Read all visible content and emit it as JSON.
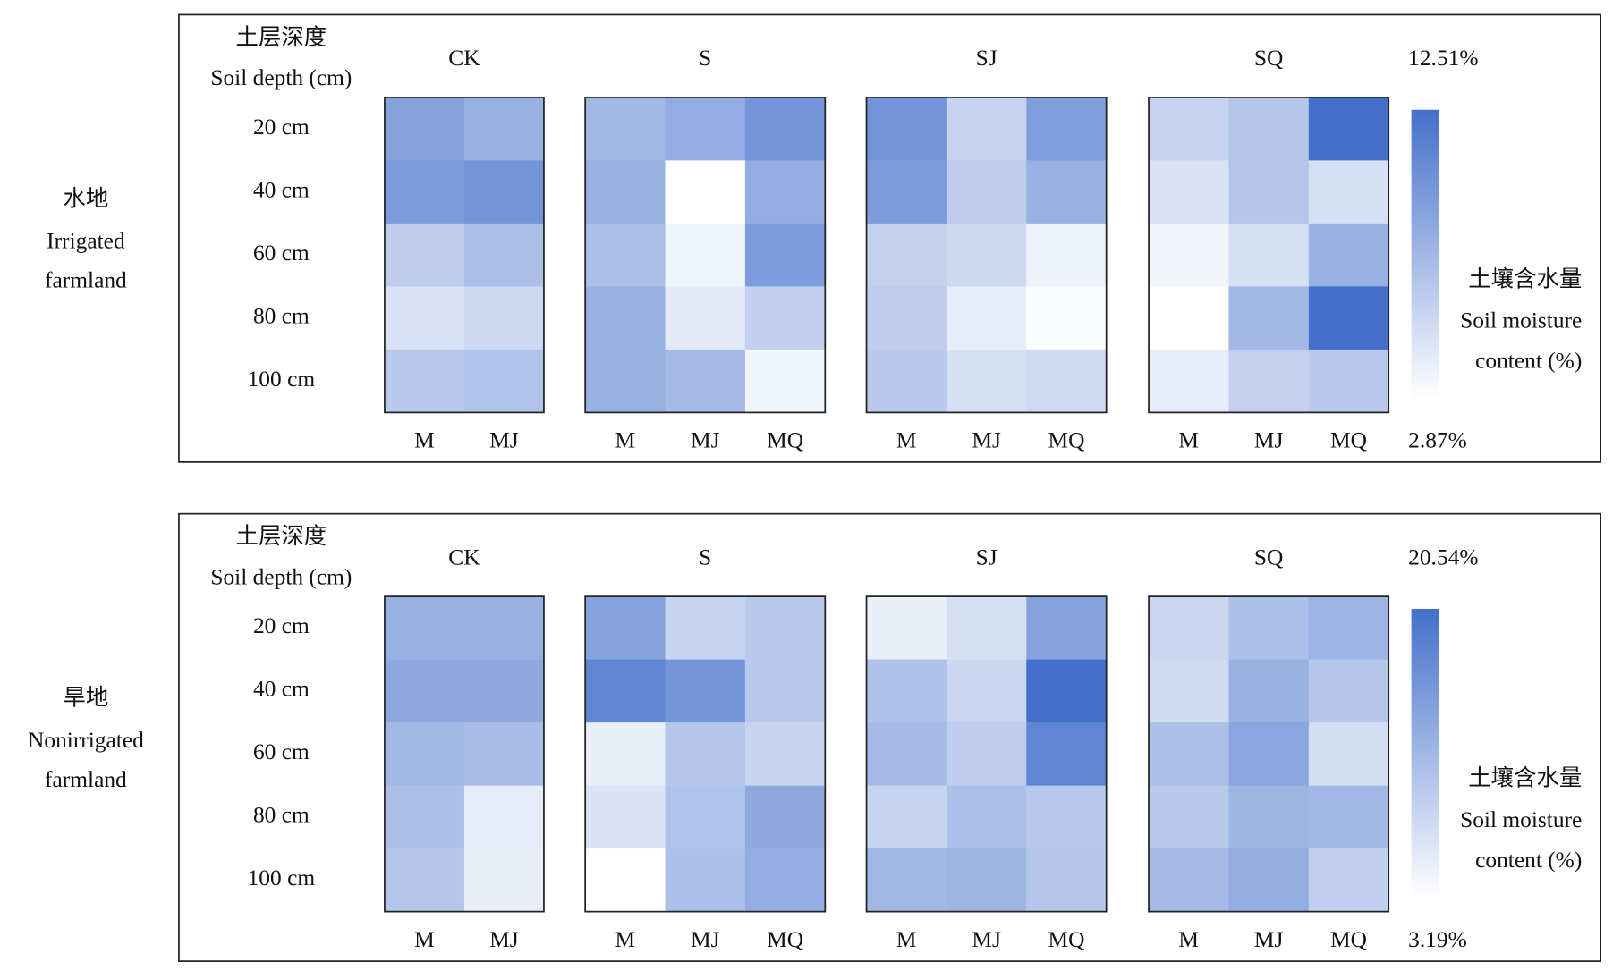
{
  "chart_data": [
    {
      "type": "heatmap",
      "panel_label": [
        "水地",
        "Irrigated",
        "farmland"
      ],
      "row_header": [
        "土层深度",
        "Soil depth (cm)"
      ],
      "rows": [
        "20 cm",
        "40 cm",
        "60 cm",
        "80 cm",
        "100 cm"
      ],
      "groups": [
        {
          "name": "CK",
          "columns": [
            "M",
            "MJ"
          ],
          "values": [
            [
              9.14,
              8.17
            ],
            [
              9.62,
              10.1
            ],
            [
              6.24,
              7.21
            ],
            [
              4.8,
              5.47
            ],
            [
              6.53,
              6.92
            ]
          ]
        },
        {
          "name": "S",
          "columns": [
            "M",
            "MJ",
            "MQ"
          ],
          "values": [
            [
              7.69,
              8.46,
              10.1
            ],
            [
              8.17,
              2.87,
              8.46
            ],
            [
              7.21,
              3.64,
              9.62
            ],
            [
              8.17,
              4.32,
              6.05
            ],
            [
              8.17,
              7.5,
              3.64
            ]
          ]
        },
        {
          "name": "SJ",
          "columns": [
            "M",
            "MJ",
            "MQ"
          ],
          "values": [
            [
              10.1,
              5.76,
              9.43
            ],
            [
              9.62,
              6.24,
              8.17
            ],
            [
              5.95,
              5.47,
              3.83
            ],
            [
              6.24,
              4.03,
              3.06
            ],
            [
              6.53,
              4.99,
              5.28
            ]
          ]
        },
        {
          "name": "SQ",
          "columns": [
            "M",
            "MJ",
            "MQ"
          ],
          "values": [
            [
              5.76,
              6.73,
              12.51
            ],
            [
              4.8,
              6.73,
              4.99
            ],
            [
              3.54,
              4.99,
              8.17
            ],
            [
              2.87,
              7.69,
              12.51
            ],
            [
              4.12,
              5.95,
              6.53
            ]
          ]
        }
      ],
      "clim": [
        {
          "value": 2.87,
          "label": "2.87%"
        },
        {
          "value": 12.51,
          "label": "12.51%"
        }
      ],
      "colorbar_title": [
        "土壤含水量",
        "Soil moisture",
        "content (%)"
      ],
      "colors": [
        "#ffffff",
        "#4470cb"
      ]
    },
    {
      "type": "heatmap",
      "panel_label": [
        "旱地",
        "Nonirrigated",
        "farmland"
      ],
      "row_header": [
        "土层深度",
        "Soil depth (cm)"
      ],
      "rows": [
        "20 cm",
        "40 cm",
        "60 cm",
        "80 cm",
        "100 cm"
      ],
      "groups": [
        {
          "name": "CK",
          "columns": [
            "M",
            "MJ"
          ],
          "values": [
            [
              12.73,
              12.73
            ],
            [
              13.6,
              13.6
            ],
            [
              11.87,
              11.35
            ],
            [
              11.0,
              5.45
            ],
            [
              10.13,
              5.27
            ]
          ]
        },
        {
          "name": "S",
          "columns": [
            "M",
            "MJ",
            "MQ"
          ],
          "values": [
            [
              14.47,
              8.4,
              9.78
            ],
            [
              17.94,
              16.2,
              9.78
            ],
            [
              5.27,
              10.13,
              8.4
            ],
            [
              6.66,
              10.48,
              13.6
            ],
            [
              3.19,
              11.0,
              13.25
            ]
          ]
        },
        {
          "name": "SJ",
          "columns": [
            "M",
            "MJ",
            "MQ"
          ],
          "values": [
            [
              5.27,
              7.01,
              14.47
            ],
            [
              10.65,
              8.05,
              20.54
            ],
            [
              11.52,
              9.26,
              17.94
            ],
            [
              8.4,
              11.0,
              9.78
            ],
            [
              11.87,
              12.21,
              10.13
            ]
          ]
        },
        {
          "name": "SQ",
          "columns": [
            "M",
            "MJ",
            "MQ"
          ],
          "values": [
            [
              8.05,
              11.0,
              12.39
            ],
            [
              7.53,
              12.73,
              10.13
            ],
            [
              11.0,
              13.95,
              7.18
            ],
            [
              9.78,
              12.21,
              11.87
            ],
            [
              11.52,
              13.08,
              8.92
            ]
          ]
        }
      ],
      "clim": [
        {
          "value": 3.19,
          "label": "3.19%"
        },
        {
          "value": 20.54,
          "label": "20.54%"
        }
      ],
      "colorbar_title": [
        "土壤含水量",
        "Soil moisture",
        "content (%)"
      ],
      "colors": [
        "#ffffff",
        "#4470cb"
      ]
    }
  ]
}
